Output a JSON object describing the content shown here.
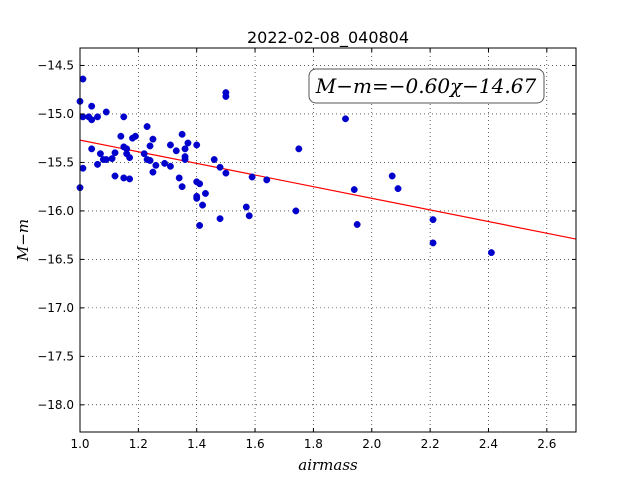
{
  "chart_data": {
    "type": "scatter",
    "title": "2022-02-08_040804",
    "xlabel": "airmass",
    "ylabel": "M−m",
    "xlim": [
      1.0,
      2.7
    ],
    "ylim": [
      -18.28,
      -14.32
    ],
    "y_inverted": true,
    "grid": true,
    "xticks": [
      1.0,
      1.2,
      1.4,
      1.6,
      1.8,
      2.0,
      2.2,
      2.4,
      2.6
    ],
    "xtick_labels": [
      "1.0",
      "1.2",
      "1.4",
      "1.6",
      "1.8",
      "2.0",
      "2.2",
      "2.4",
      "2.6"
    ],
    "yticks": [
      -14.5,
      -15.0,
      -15.5,
      -16.0,
      -16.5,
      -17.0,
      -17.5,
      -18.0
    ],
    "ytick_labels": [
      "−14.5",
      "−15.0",
      "−15.5",
      "−16.0",
      "−16.5",
      "−17.0",
      "−17.5",
      "−18.0"
    ],
    "annotation": "M−m=−0.60χ−14.67",
    "fit": {
      "slope": -0.6,
      "intercept": -14.67,
      "color": "#ff0000"
    },
    "marker_color": "#0000cc",
    "points": [
      [
        1.0,
        -14.87
      ],
      [
        1.01,
        -14.64
      ],
      [
        1.01,
        -15.03
      ],
      [
        1.01,
        -15.56
      ],
      [
        1.0,
        -15.76
      ],
      [
        1.03,
        -15.03
      ],
      [
        1.04,
        -14.92
      ],
      [
        1.04,
        -15.06
      ],
      [
        1.04,
        -15.36
      ],
      [
        1.06,
        -15.03
      ],
      [
        1.06,
        -15.52
      ],
      [
        1.07,
        -15.41
      ],
      [
        1.08,
        -15.47
      ],
      [
        1.09,
        -14.98
      ],
      [
        1.09,
        -15.47
      ],
      [
        1.11,
        -15.46
      ],
      [
        1.12,
        -15.4
      ],
      [
        1.12,
        -15.64
      ],
      [
        1.14,
        -15.23
      ],
      [
        1.15,
        -15.03
      ],
      [
        1.15,
        -15.34
      ],
      [
        1.15,
        -15.66
      ],
      [
        1.16,
        -15.36
      ],
      [
        1.16,
        -15.41
      ],
      [
        1.17,
        -15.45
      ],
      [
        1.17,
        -15.67
      ],
      [
        1.18,
        -15.25
      ],
      [
        1.19,
        -15.23
      ],
      [
        1.22,
        -15.41
      ],
      [
        1.23,
        -15.13
      ],
      [
        1.23,
        -15.47
      ],
      [
        1.24,
        -15.33
      ],
      [
        1.24,
        -15.48
      ],
      [
        1.25,
        -15.26
      ],
      [
        1.25,
        -15.6
      ],
      [
        1.26,
        -15.53
      ],
      [
        1.29,
        -15.51
      ],
      [
        1.31,
        -15.32
      ],
      [
        1.31,
        -15.54
      ],
      [
        1.33,
        -15.38
      ],
      [
        1.34,
        -15.66
      ],
      [
        1.35,
        -15.21
      ],
      [
        1.35,
        -15.75
      ],
      [
        1.36,
        -15.36
      ],
      [
        1.36,
        -15.44
      ],
      [
        1.36,
        -15.47
      ],
      [
        1.37,
        -15.3
      ],
      [
        1.4,
        -15.32
      ],
      [
        1.4,
        -15.7
      ],
      [
        1.4,
        -15.85
      ],
      [
        1.4,
        -15.87
      ],
      [
        1.41,
        -15.72
      ],
      [
        1.41,
        -16.15
      ],
      [
        1.42,
        -15.94
      ],
      [
        1.43,
        -15.82
      ],
      [
        1.46,
        -15.47
      ],
      [
        1.48,
        -15.55
      ],
      [
        1.48,
        -16.08
      ],
      [
        1.5,
        -14.78
      ],
      [
        1.5,
        -14.82
      ],
      [
        1.5,
        -15.61
      ],
      [
        1.57,
        -15.96
      ],
      [
        1.58,
        -16.05
      ],
      [
        1.59,
        -15.65
      ],
      [
        1.64,
        -15.68
      ],
      [
        1.74,
        -16.0
      ],
      [
        1.75,
        -15.36
      ],
      [
        1.91,
        -15.05
      ],
      [
        1.94,
        -15.78
      ],
      [
        1.95,
        -16.14
      ],
      [
        2.07,
        -15.64
      ],
      [
        2.09,
        -15.77
      ],
      [
        2.21,
        -16.09
      ],
      [
        2.21,
        -16.33
      ],
      [
        2.41,
        -16.43
      ]
    ]
  }
}
